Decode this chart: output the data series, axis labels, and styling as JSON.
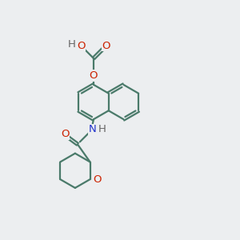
{
  "bg_color": "#eceef0",
  "bond_color": "#4a7a6a",
  "o_color": "#cc2200",
  "n_color": "#2233cc",
  "h_color": "#666666",
  "line_width": 1.6,
  "font_size": 9.5,
  "xlim": [
    0,
    10
  ],
  "ylim": [
    0,
    10
  ]
}
